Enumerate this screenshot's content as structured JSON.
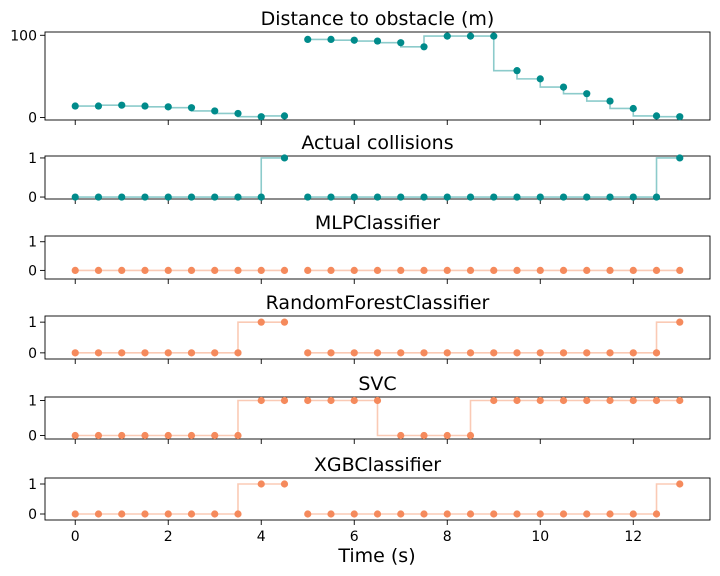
{
  "figure": {
    "xlabel": "Time (s)",
    "x_ticks": [
      0,
      2,
      4,
      6,
      8,
      10,
      12
    ],
    "xlim": [
      -0.65,
      13.65
    ]
  },
  "chart_data": [
    {
      "type": "line",
      "title": "Distance to obstacle (m)",
      "color": "#008b8b",
      "ylim": [
        -3,
        104
      ],
      "y_ticks": [
        0,
        100
      ],
      "segments": [
        {
          "x": [
            0,
            0.5,
            1,
            1.5,
            2,
            2.5,
            3,
            3.5,
            4,
            4.5
          ],
          "y": [
            14,
            14,
            15,
            14,
            13,
            12,
            8,
            5,
            1,
            2
          ]
        },
        {
          "x": [
            5,
            5.5,
            6,
            6.5,
            7,
            7.5,
            8,
            8.5,
            9,
            9.5,
            10,
            10.5,
            11,
            11.5,
            12,
            12.5,
            13
          ],
          "y": [
            95,
            95,
            94,
            93,
            91,
            86,
            99,
            99,
            99,
            57,
            47,
            37,
            29,
            20,
            11,
            2,
            1
          ]
        }
      ]
    },
    {
      "type": "line",
      "title": "Actual collisions",
      "color": "#008b8b",
      "ylim": [
        -0.05,
        1.05
      ],
      "y_ticks": [
        0,
        1
      ],
      "segments": [
        {
          "x": [
            0,
            0.5,
            1,
            1.5,
            2,
            2.5,
            3,
            3.5,
            4,
            4.5
          ],
          "y": [
            0,
            0,
            0,
            0,
            0,
            0,
            0,
            0,
            0,
            1
          ]
        },
        {
          "x": [
            5,
            5.5,
            6,
            6.5,
            7,
            7.5,
            8,
            8.5,
            9,
            9.5,
            10,
            10.5,
            11,
            11.5,
            12,
            12.5,
            13
          ],
          "y": [
            0,
            0,
            0,
            0,
            0,
            0,
            0,
            0,
            0,
            0,
            0,
            0,
            0,
            0,
            0,
            0,
            1
          ]
        }
      ]
    },
    {
      "type": "line",
      "title": "MLPClassifier",
      "color": "#f58a5c",
      "ylim": [
        -0.3,
        1.2
      ],
      "y_ticks": [
        0,
        1
      ],
      "segments": [
        {
          "x": [
            0,
            0.5,
            1,
            1.5,
            2,
            2.5,
            3,
            3.5,
            4,
            4.5
          ],
          "y": [
            0,
            0,
            0,
            0,
            0,
            0,
            0,
            0,
            0,
            0
          ]
        },
        {
          "x": [
            5,
            5.5,
            6,
            6.5,
            7,
            7.5,
            8,
            8.5,
            9,
            9.5,
            10,
            10.5,
            11,
            11.5,
            12,
            12.5,
            13
          ],
          "y": [
            0,
            0,
            0,
            0,
            0,
            0,
            0,
            0,
            0,
            0,
            0,
            0,
            0,
            0,
            0,
            0,
            0
          ]
        }
      ]
    },
    {
      "type": "line",
      "title": "RandomForestClassifier",
      "color": "#f58a5c",
      "ylim": [
        -0.2,
        1.2
      ],
      "y_ticks": [
        0,
        1
      ],
      "segments": [
        {
          "x": [
            0,
            0.5,
            1,
            1.5,
            2,
            2.5,
            3,
            3.5,
            4,
            4.5
          ],
          "y": [
            0,
            0,
            0,
            0,
            0,
            0,
            0,
            0,
            1,
            1
          ]
        },
        {
          "x": [
            5,
            5.5,
            6,
            6.5,
            7,
            7.5,
            8,
            8.5,
            9,
            9.5,
            10,
            10.5,
            11,
            11.5,
            12,
            12.5,
            13
          ],
          "y": [
            0,
            0,
            0,
            0,
            0,
            0,
            0,
            0,
            0,
            0,
            0,
            0,
            0,
            0,
            0,
            0,
            1
          ]
        }
      ]
    },
    {
      "type": "line",
      "title": "SVC",
      "color": "#f58a5c",
      "ylim": [
        -0.1,
        1.1
      ],
      "y_ticks": [
        0,
        1
      ],
      "segments": [
        {
          "x": [
            0,
            0.5,
            1,
            1.5,
            2,
            2.5,
            3,
            3.5,
            4,
            4.5
          ],
          "y": [
            0,
            0,
            0,
            0,
            0,
            0,
            0,
            0,
            1,
            1
          ]
        },
        {
          "x": [
            5,
            5.5,
            6,
            6.5,
            7,
            7.5,
            8,
            8.5,
            9,
            9.5,
            10,
            10.5,
            11,
            11.5,
            12,
            12.5,
            13
          ],
          "y": [
            1,
            1,
            1,
            1,
            0,
            0,
            0,
            0,
            1,
            1,
            1,
            1,
            1,
            1,
            1,
            1,
            1
          ]
        }
      ]
    },
    {
      "type": "line",
      "title": "XGBClassifier",
      "color": "#f58a5c",
      "ylim": [
        -0.2,
        1.2
      ],
      "y_ticks": [
        0,
        1
      ],
      "segments": [
        {
          "x": [
            0,
            0.5,
            1,
            1.5,
            2,
            2.5,
            3,
            3.5,
            4,
            4.5
          ],
          "y": [
            0,
            0,
            0,
            0,
            0,
            0,
            0,
            0,
            1,
            1
          ]
        },
        {
          "x": [
            5,
            5.5,
            6,
            6.5,
            7,
            7.5,
            8,
            8.5,
            9,
            9.5,
            10,
            10.5,
            11,
            11.5,
            12,
            12.5,
            13
          ],
          "y": [
            0,
            0,
            0,
            0,
            0,
            0,
            0,
            0,
            0,
            0,
            0,
            0,
            0,
            0,
            0,
            0,
            1
          ]
        }
      ]
    }
  ]
}
